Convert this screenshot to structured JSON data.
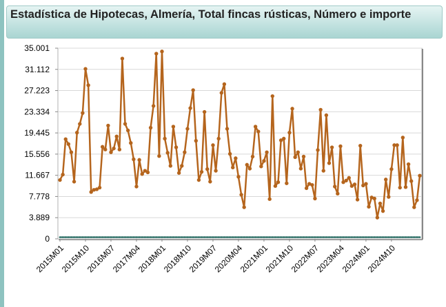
{
  "chart_data": {
    "type": "line",
    "title": "Estadística de Hipotecas, Almería, Total fincas rústicas, Número e importe",
    "ylim": [
      0,
      35001
    ],
    "y_ticks": [
      "0",
      "3.889",
      "7.778",
      "11.667",
      "15.556",
      "19.445",
      "23.334",
      "27.223",
      "31.112",
      "35.001"
    ],
    "x_tick_labels": [
      "2015M01",
      "2015M10",
      "2016M07",
      "2017M04",
      "2018M01",
      "2018M10",
      "2019M07",
      "2020M04",
      "2021M01",
      "2021M10",
      "2022M07",
      "2023M04",
      "2024M01",
      "2024M10"
    ],
    "grid": true,
    "colors": {
      "series_main": "#b5651d",
      "series_secondary": "#3d7a72",
      "grid": "#d8d8d8"
    },
    "series": [
      {
        "values": [
          10800,
          11800,
          18300,
          17400,
          15900,
          10500,
          19500,
          21100,
          23100,
          31200,
          28200,
          8600,
          9000,
          9100,
          9400,
          16900,
          16400,
          20800,
          15900,
          16600,
          18800,
          16400,
          33100,
          21100,
          19900,
          17600,
          14600,
          9600,
          14500,
          11900,
          12500,
          12200,
          20400,
          24400,
          34000,
          15200,
          34400,
          18400,
          15800,
          13400,
          20600,
          16800,
          12100,
          13400,
          15900,
          20200,
          24000,
          27300,
          18000,
          10800,
          12300,
          23300,
          12800,
          10500,
          17200,
          12500,
          18400,
          26800,
          28400,
          20200,
          15600,
          13100,
          14800,
          11400,
          8100,
          5800,
          13600,
          12900,
          15100,
          20600,
          19700,
          13300,
          14300,
          15900,
          7300,
          26200,
          9700,
          10400,
          18100,
          18400,
          10200,
          19500,
          23900,
          15000,
          15900,
          12900,
          15100,
          9300,
          10100,
          9900,
          7400,
          16300,
          23700,
          12500,
          22700,
          13900,
          16800,
          9600,
          8300,
          17000,
          10400,
          10700,
          11200,
          9700,
          10000,
          7200,
          17100,
          9800,
          10100,
          5900,
          7600,
          7400,
          3900,
          6500,
          5100,
          10900,
          7700,
          12800,
          17200,
          17200,
          9400,
          18600,
          9500,
          13700,
          10600,
          5800,
          7100,
          11600
        ],
        "secondary_values": [
          300,
          300,
          300,
          300,
          300,
          300,
          300,
          300,
          300,
          300,
          300,
          300,
          300,
          300,
          300,
          300,
          300,
          300,
          300,
          300,
          300,
          300,
          300,
          300,
          300,
          300,
          300,
          300,
          300,
          300,
          300,
          300,
          300,
          300,
          300,
          300,
          300,
          300,
          300,
          300,
          300,
          300,
          300,
          300,
          300,
          300,
          300,
          300,
          300,
          300,
          300,
          300,
          300,
          300,
          300,
          300,
          300,
          300,
          300,
          300,
          300,
          300,
          300,
          300,
          300,
          300,
          300,
          300,
          300,
          300,
          300,
          300,
          300,
          300,
          300,
          300,
          300,
          300,
          300,
          300,
          300,
          300,
          300,
          300,
          300,
          300,
          300,
          300,
          300,
          300,
          300,
          300,
          300,
          300,
          300,
          300,
          300,
          300,
          300,
          300,
          300,
          300,
          300,
          300,
          300,
          300,
          300,
          300,
          300,
          300,
          300,
          300,
          300,
          300,
          300,
          300,
          300,
          300,
          300,
          300,
          300,
          300,
          300,
          300,
          300,
          300,
          300,
          300
        ]
      }
    ]
  }
}
